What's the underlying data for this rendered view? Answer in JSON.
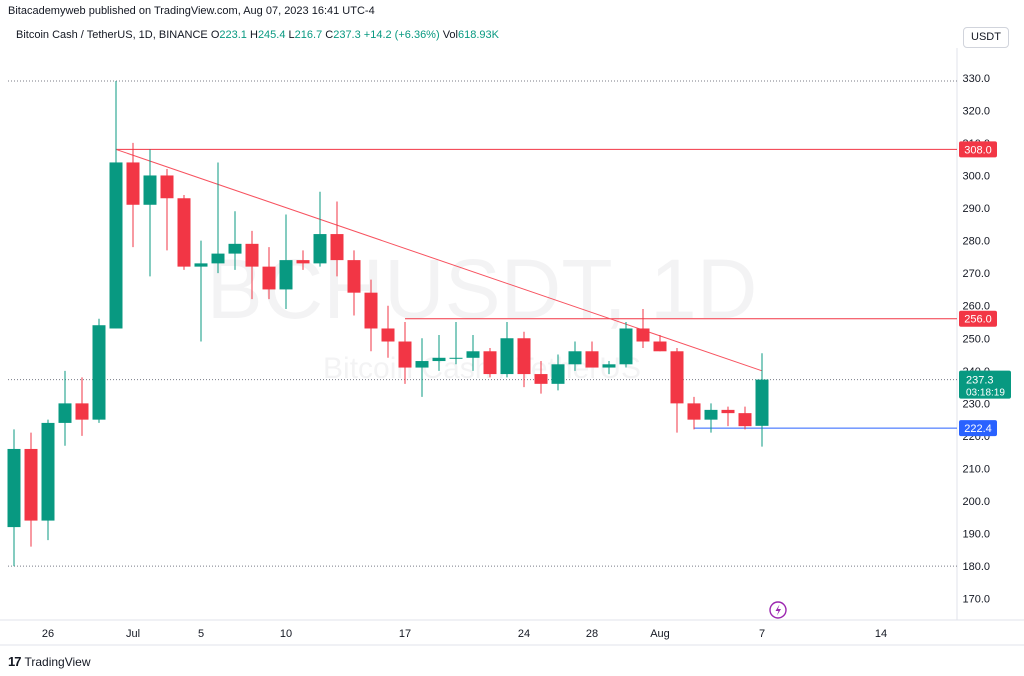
{
  "header": {
    "publisher_line": "Bitacademyweb published on TradingView.com, Aug 07, 2023 16:41 UTC-4"
  },
  "legend": {
    "symbol": "Bitcoin Cash / TetherUS, 1D, BINANCE",
    "open_label": "O",
    "open": "223.1",
    "high_label": "H",
    "high": "245.4",
    "low_label": "L",
    "low": "216.7",
    "close_label": "C",
    "close": "237.3",
    "change": "+14.2 (+6.36%)",
    "vol_label": "Vol",
    "vol": "618.93K"
  },
  "currency_button": "USDT",
  "watermark": {
    "symbol": "BCHUSDT, 1D",
    "name": "Bitcoin Cash / TetherUS"
  },
  "footer": {
    "brand": "TradingView",
    "logo": "17"
  },
  "colors": {
    "up": "#089981",
    "down": "#f23645",
    "resistance": "#f23645",
    "support": "#2962ff",
    "trendline": "#f7525f"
  },
  "chart_data": {
    "type": "candlestick",
    "ylim": [
      165,
      337
    ],
    "y_ticks": [
      170,
      180,
      190,
      200,
      210,
      220,
      230,
      240,
      250,
      260,
      270,
      280,
      290,
      300,
      310,
      320,
      330
    ],
    "x_tick_labels": [
      {
        "i": 2,
        "label": "26"
      },
      {
        "i": 7,
        "label": "Jul"
      },
      {
        "i": 11,
        "label": "5"
      },
      {
        "i": 16,
        "label": "10"
      },
      {
        "i": 23,
        "label": "17"
      },
      {
        "i": 30,
        "label": "24"
      },
      {
        "i": 34,
        "label": "28"
      },
      {
        "i": 38,
        "label": "Aug"
      },
      {
        "i": 44,
        "label": "7"
      },
      {
        "i": 51,
        "label": "14"
      }
    ],
    "candles": [
      {
        "o": 192,
        "h": 222,
        "l": 180,
        "c": 216
      },
      {
        "o": 216,
        "h": 221,
        "l": 186,
        "c": 194
      },
      {
        "o": 194,
        "h": 225,
        "l": 188,
        "c": 224
      },
      {
        "o": 224,
        "h": 240,
        "l": 217,
        "c": 230
      },
      {
        "o": 230,
        "h": 238,
        "l": 220,
        "c": 225
      },
      {
        "o": 225,
        "h": 256,
        "l": 224,
        "c": 254
      },
      {
        "o": 253,
        "h": 329,
        "l": 253,
        "c": 304
      },
      {
        "o": 304,
        "h": 310,
        "l": 278,
        "c": 291
      },
      {
        "o": 291,
        "h": 308,
        "l": 269,
        "c": 300
      },
      {
        "o": 300,
        "h": 302,
        "l": 277,
        "c": 293
      },
      {
        "o": 293,
        "h": 294,
        "l": 271,
        "c": 272
      },
      {
        "o": 272,
        "h": 280,
        "l": 249,
        "c": 273
      },
      {
        "o": 273,
        "h": 304,
        "l": 270,
        "c": 276
      },
      {
        "o": 276,
        "h": 289,
        "l": 271,
        "c": 279
      },
      {
        "o": 279,
        "h": 283,
        "l": 262,
        "c": 272
      },
      {
        "o": 272,
        "h": 278,
        "l": 262,
        "c": 265
      },
      {
        "o": 265,
        "h": 288,
        "l": 259,
        "c": 274
      },
      {
        "o": 274,
        "h": 277,
        "l": 271,
        "c": 273
      },
      {
        "o": 273,
        "h": 295,
        "l": 272,
        "c": 282
      },
      {
        "o": 282,
        "h": 292,
        "l": 269,
        "c": 274
      },
      {
        "o": 274,
        "h": 277,
        "l": 257,
        "c": 264
      },
      {
        "o": 264,
        "h": 268,
        "l": 246,
        "c": 253
      },
      {
        "o": 253,
        "h": 260,
        "l": 244,
        "c": 249
      },
      {
        "o": 249,
        "h": 255,
        "l": 236,
        "c": 241
      },
      {
        "o": 241,
        "h": 250,
        "l": 232,
        "c": 243
      },
      {
        "o": 243,
        "h": 251,
        "l": 240,
        "c": 244
      },
      {
        "o": 244,
        "h": 255,
        "l": 242,
        "c": 244
      },
      {
        "o": 244,
        "h": 251,
        "l": 240,
        "c": 246
      },
      {
        "o": 246,
        "h": 247,
        "l": 238,
        "c": 239
      },
      {
        "o": 239,
        "h": 255,
        "l": 238,
        "c": 250
      },
      {
        "o": 250,
        "h": 252,
        "l": 235,
        "c": 239
      },
      {
        "o": 239,
        "h": 243,
        "l": 233,
        "c": 236
      },
      {
        "o": 236,
        "h": 245,
        "l": 234,
        "c": 242
      },
      {
        "o": 242,
        "h": 249,
        "l": 240,
        "c": 246
      },
      {
        "o": 246,
        "h": 249,
        "l": 241,
        "c": 241
      },
      {
        "o": 241,
        "h": 243,
        "l": 239,
        "c": 242
      },
      {
        "o": 242,
        "h": 255,
        "l": 241,
        "c": 253
      },
      {
        "o": 253,
        "h": 259,
        "l": 247,
        "c": 249
      },
      {
        "o": 249,
        "h": 251,
        "l": 246,
        "c": 246
      },
      {
        "o": 246,
        "h": 247,
        "l": 221,
        "c": 230
      },
      {
        "o": 230,
        "h": 232,
        "l": 222,
        "c": 225
      },
      {
        "o": 225,
        "h": 230,
        "l": 221,
        "c": 228
      },
      {
        "o": 228,
        "h": 229,
        "l": 223,
        "c": 227
      },
      {
        "o": 227,
        "h": 229,
        "l": 222,
        "c": 223
      },
      {
        "o": 223.1,
        "h": 245.4,
        "l": 216.7,
        "c": 237.3
      }
    ],
    "dotted_levels": [
      329,
      180,
      237.3
    ],
    "horizontal_lines": [
      {
        "price": 308.0,
        "label": "308.0",
        "from_i": 6,
        "color": "#f23645"
      },
      {
        "price": 256.0,
        "label": "256.0",
        "from_i": 23,
        "color": "#f23645"
      },
      {
        "price": 222.4,
        "label": "222.4",
        "from_i": 40,
        "color": "#2962ff"
      }
    ],
    "trendline": {
      "from_i": 6,
      "from_price": 308,
      "to_i": 44,
      "to_price": 240
    },
    "last_price": {
      "label": "237.3",
      "countdown": "03:18:19",
      "price": 237.3
    }
  }
}
